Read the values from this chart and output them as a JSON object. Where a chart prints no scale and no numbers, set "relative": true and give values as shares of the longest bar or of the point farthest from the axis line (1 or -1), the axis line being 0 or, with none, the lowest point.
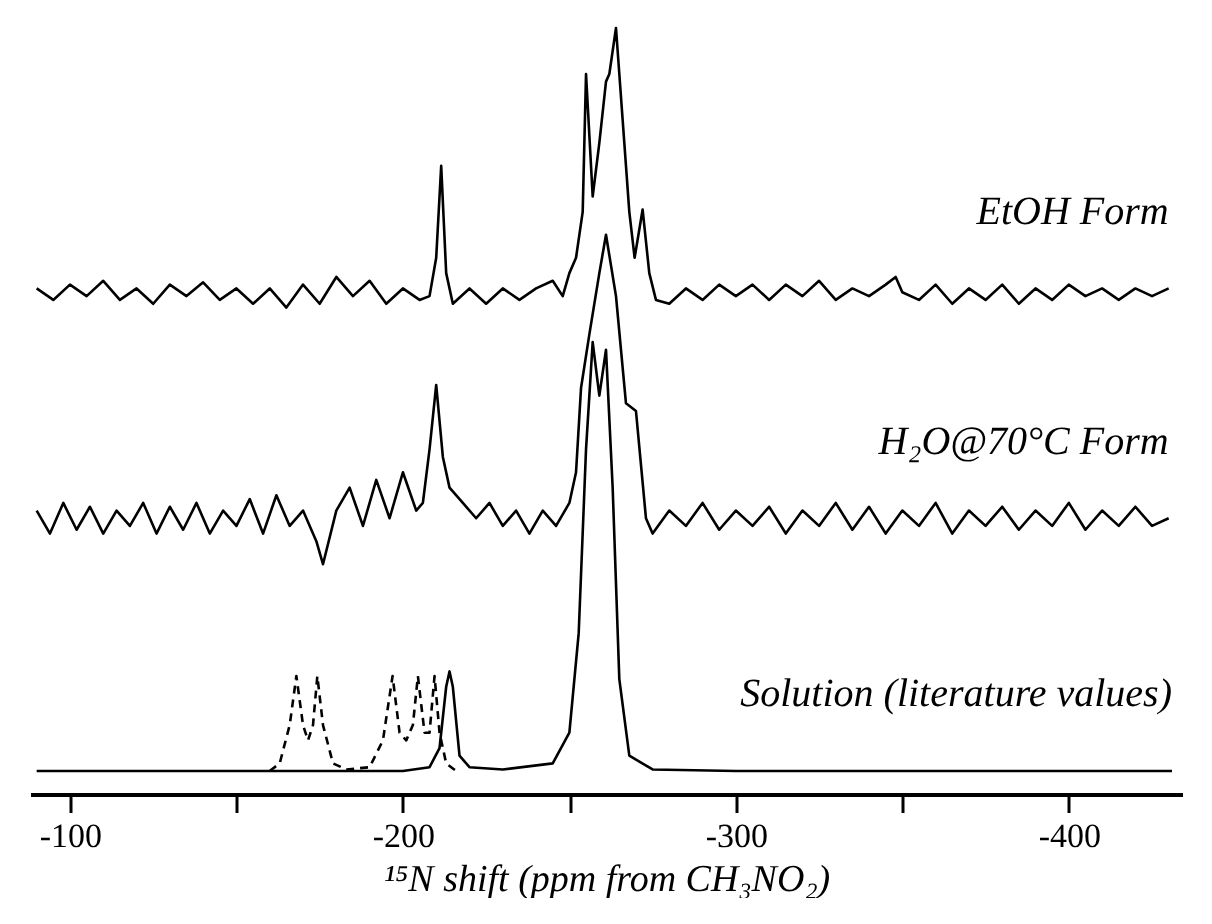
{
  "chart_data": {
    "type": "line",
    "relative": true,
    "xlabel": "¹⁵N shift (ppm from CH₃NO₂)",
    "xlim": [
      -88,
      -434
    ],
    "xticks": [
      -100,
      {
        "value": -150,
        "label": null
      },
      -200,
      {
        "value": -250,
        "label": null
      },
      -300,
      {
        "value": -350,
        "label": null
      },
      -400
    ],
    "grid": false,
    "marker": "none",
    "series": [
      {
        "name": "EtOH Form",
        "color": "#000000",
        "line_style": "solid",
        "x": [
          -90,
          -95,
          -100,
          -105,
          -110,
          -115,
          -120,
          -125,
          -130,
          -135,
          -140,
          -145,
          -150,
          -155,
          -160,
          -165,
          -170,
          -175,
          -180,
          -185,
          -190,
          -195,
          -200,
          -205,
          -208,
          -210,
          -211.5,
          -213,
          -215,
          -220,
          -225,
          -230,
          -235,
          -240,
          -245,
          -248,
          -250,
          -252,
          -254,
          -255,
          -257,
          -259,
          -261,
          -262,
          -264,
          -266,
          -268,
          -269.6,
          -272,
          -274,
          -276,
          -280,
          -285,
          -290,
          -295,
          -300,
          -305,
          -310,
          -315,
          -320,
          -325,
          -330,
          -335,
          -340,
          -345,
          -348,
          -350,
          -355,
          -360,
          -365,
          -370,
          -375,
          -380,
          -385,
          -390,
          -395,
          -400,
          -405,
          -410,
          -415,
          -420,
          -425,
          -430
        ],
        "values": [
          0.66,
          0.645,
          0.665,
          0.65,
          0.67,
          0.645,
          0.66,
          0.64,
          0.665,
          0.65,
          0.668,
          0.645,
          0.66,
          0.64,
          0.66,
          0.635,
          0.665,
          0.64,
          0.675,
          0.65,
          0.67,
          0.64,
          0.66,
          0.645,
          0.65,
          0.7,
          0.82,
          0.68,
          0.64,
          0.66,
          0.64,
          0.66,
          0.645,
          0.66,
          0.67,
          0.65,
          0.68,
          0.7,
          0.76,
          0.94,
          0.78,
          0.85,
          0.93,
          0.94,
          1.0,
          0.88,
          0.76,
          0.7,
          0.763,
          0.68,
          0.645,
          0.64,
          0.66,
          0.645,
          0.665,
          0.65,
          0.665,
          0.645,
          0.665,
          0.65,
          0.67,
          0.645,
          0.66,
          0.65,
          0.665,
          0.675,
          0.655,
          0.645,
          0.665,
          0.64,
          0.66,
          0.645,
          0.665,
          0.64,
          0.66,
          0.645,
          0.665,
          0.65,
          0.66,
          0.645,
          0.66,
          0.65,
          0.66
        ]
      },
      {
        "name": "H₂O@70°C Form",
        "color": "#000000",
        "line_style": "solid",
        "x": [
          -90,
          -94,
          -98,
          -102,
          -106,
          -110,
          -114,
          -118,
          -122,
          -126,
          -130,
          -134,
          -138,
          -142,
          -146,
          -150,
          -154,
          -158,
          -162,
          -166,
          -170,
          -174,
          -176,
          -180,
          -184,
          -188,
          -192,
          -196,
          -200,
          -204,
          -206,
          -208,
          -210,
          -212,
          -214,
          -218,
          -222,
          -226,
          -230,
          -234,
          -238,
          -242,
          -246,
          -250,
          -252,
          -253.5,
          -256,
          -259,
          -261,
          -264,
          -267,
          -270,
          -271.5,
          -273,
          -275,
          -280,
          -285,
          -290,
          -295,
          -300,
          -305,
          -310,
          -315,
          -320,
          -325,
          -330,
          -335,
          -340,
          -345,
          -350,
          -355,
          -360,
          -365,
          -370,
          -375,
          -380,
          -385,
          -390,
          -395,
          -400,
          -405,
          -410,
          -415,
          -420,
          -425,
          -430
        ],
        "values": [
          0.37,
          0.34,
          0.38,
          0.345,
          0.375,
          0.34,
          0.37,
          0.35,
          0.38,
          0.34,
          0.375,
          0.345,
          0.38,
          0.34,
          0.37,
          0.35,
          0.385,
          0.34,
          0.39,
          0.35,
          0.37,
          0.33,
          0.3,
          0.37,
          0.4,
          0.35,
          0.41,
          0.36,
          0.42,
          0.37,
          0.38,
          0.45,
          0.534,
          0.44,
          0.4,
          0.38,
          0.36,
          0.38,
          0.35,
          0.37,
          0.34,
          0.37,
          0.35,
          0.38,
          0.42,
          0.53,
          0.6,
          0.68,
          0.73,
          0.65,
          0.51,
          0.5,
          0.43,
          0.36,
          0.34,
          0.37,
          0.35,
          0.38,
          0.345,
          0.37,
          0.35,
          0.375,
          0.34,
          0.37,
          0.35,
          0.38,
          0.345,
          0.375,
          0.34,
          0.37,
          0.35,
          0.38,
          0.34,
          0.37,
          0.35,
          0.375,
          0.345,
          0.37,
          0.35,
          0.38,
          0.345,
          0.37,
          0.35,
          0.375,
          0.35,
          0.36
        ]
      },
      {
        "name": "Solution (literature values)",
        "color": "#000000",
        "line_style": "solid",
        "x": [
          -90,
          -150,
          -200,
          -208,
          -211,
          -213,
          -214,
          -215,
          -217,
          -220,
          -230,
          -245,
          -250,
          -252.8,
          -255,
          -257,
          -259,
          -261,
          -263,
          -265,
          -268,
          -275,
          -300,
          -350,
          -400,
          -431
        ],
        "values": [
          0.03,
          0.03,
          0.03,
          0.035,
          0.06,
          0.14,
          0.16,
          0.14,
          0.05,
          0.035,
          0.032,
          0.04,
          0.08,
          0.21,
          0.45,
          0.59,
          0.52,
          0.58,
          0.4,
          0.15,
          0.05,
          0.032,
          0.03,
          0.03,
          0.03,
          0.03
        ]
      },
      {
        "color": "#000000",
        "line_style": "dashed",
        "x": [
          -160,
          -163,
          -166,
          -168,
          -170,
          -171.5,
          -173,
          -174.3,
          -176,
          -179,
          -183,
          -190,
          -194,
          -196.9,
          -199,
          -201,
          -203,
          -204.5,
          -206.5,
          -208,
          -209.5,
          -211,
          -213,
          -216
        ],
        "values": [
          0.03,
          0.04,
          0.09,
          0.154,
          0.09,
          0.07,
          0.09,
          0.154,
          0.09,
          0.04,
          0.032,
          0.035,
          0.07,
          0.154,
          0.08,
          0.07,
          0.09,
          0.154,
          0.08,
          0.08,
          0.154,
          0.08,
          0.04,
          0.03
        ]
      }
    ]
  }
}
